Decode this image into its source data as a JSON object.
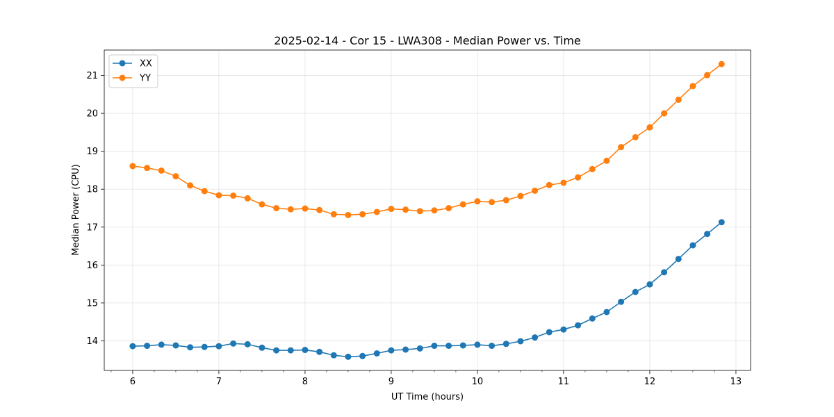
{
  "chart_data": {
    "type": "line",
    "title": "2025-02-14 - Cor 15 - LWA308 - Median Power vs. Time",
    "xlabel": "UT Time (hours)",
    "ylabel": "Median Power (CPU)",
    "xlim": [
      5.67,
      13.17
    ],
    "ylim": [
      13.22,
      21.67
    ],
    "xticks": [
      6,
      7,
      8,
      9,
      10,
      11,
      12,
      13
    ],
    "yticks": [
      14,
      15,
      16,
      17,
      18,
      19,
      20,
      21
    ],
    "grid": true,
    "legend_position": "top-left",
    "x": [
      6.0,
      6.1667,
      6.3333,
      6.5,
      6.6667,
      6.8333,
      7.0,
      7.1667,
      7.3333,
      7.5,
      7.6667,
      7.8333,
      8.0,
      8.1667,
      8.3333,
      8.5,
      8.6667,
      8.8333,
      9.0,
      9.1667,
      9.3333,
      9.5,
      9.6667,
      9.8333,
      10.0,
      10.1667,
      10.3333,
      10.5,
      10.6667,
      10.8333,
      11.0,
      11.1667,
      11.3333,
      11.5,
      11.6667,
      11.8333,
      12.0,
      12.1667,
      12.3333,
      12.5,
      12.6667,
      12.8333
    ],
    "series": [
      {
        "name": "XX",
        "color": "#1f77b4",
        "values": [
          13.86,
          13.87,
          13.9,
          13.88,
          13.83,
          13.84,
          13.86,
          13.93,
          13.91,
          13.82,
          13.75,
          13.75,
          13.76,
          13.71,
          13.62,
          13.58,
          13.6,
          13.67,
          13.75,
          13.77,
          13.8,
          13.87,
          13.87,
          13.88,
          13.9,
          13.87,
          13.92,
          13.99,
          14.09,
          14.23,
          14.3,
          14.41,
          14.59,
          14.76,
          15.03,
          15.29,
          15.49,
          15.81,
          16.16,
          16.52,
          16.82,
          17.13
        ]
      },
      {
        "name": "YY",
        "color": "#ff7f0e",
        "values": [
          18.61,
          18.56,
          18.49,
          18.34,
          18.1,
          17.95,
          17.84,
          17.83,
          17.76,
          17.6,
          17.5,
          17.47,
          17.49,
          17.45,
          17.34,
          17.32,
          17.34,
          17.4,
          17.48,
          17.46,
          17.42,
          17.44,
          17.5,
          17.6,
          17.68,
          17.66,
          17.71,
          17.82,
          17.96,
          18.11,
          18.17,
          18.31,
          18.53,
          18.75,
          19.11,
          19.37,
          19.63,
          20.0,
          20.36,
          20.72,
          21.01,
          21.3
        ]
      }
    ]
  }
}
